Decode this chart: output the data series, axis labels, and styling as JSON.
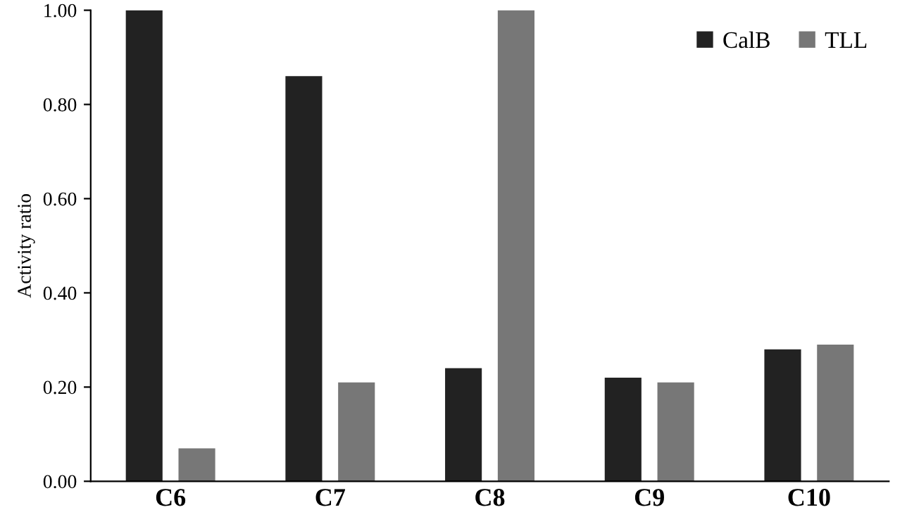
{
  "chart_data": {
    "type": "bar",
    "ylabel": "Activity ratio",
    "categories": [
      "C6",
      "C7",
      "C8",
      "C9",
      "C10"
    ],
    "series": [
      {
        "name": "CalB",
        "color": "#222222",
        "values": [
          1.0,
          0.86,
          0.24,
          0.22,
          0.28
        ]
      },
      {
        "name": "TLL",
        "color": "#777777",
        "values": [
          0.07,
          0.21,
          1.0,
          0.21,
          0.29
        ]
      }
    ],
    "ylim": [
      0,
      1
    ],
    "yticks": [
      {
        "value": 0,
        "label": "0.00"
      },
      {
        "value": 0.2,
        "label": "0.20"
      },
      {
        "value": 0.4,
        "label": "0.40"
      },
      {
        "value": 0.6,
        "label": "0.60"
      },
      {
        "value": 0.8,
        "label": "0.80"
      },
      {
        "value": 1,
        "label": "1.00"
      }
    ],
    "grid": false,
    "legend": "top right"
  }
}
